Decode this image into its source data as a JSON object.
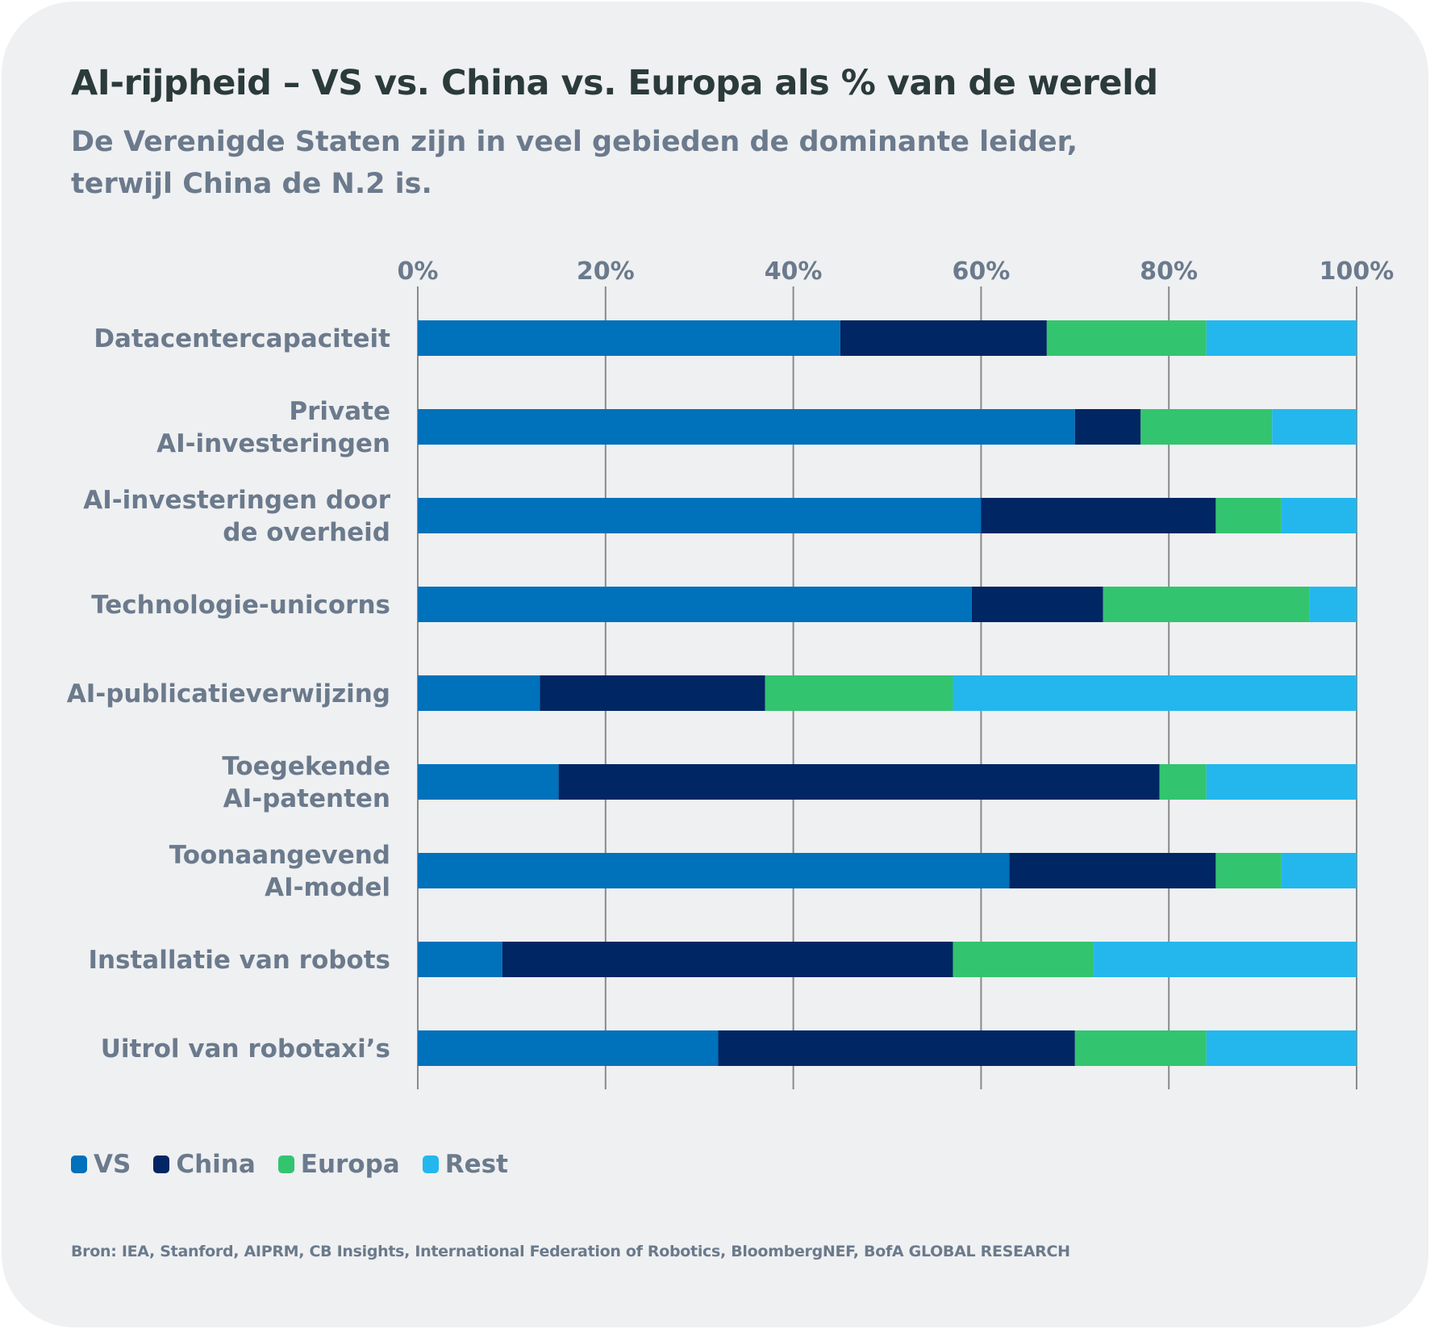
{
  "chart_data": {
    "type": "bar",
    "orientation": "horizontal",
    "stacked": true,
    "title": "AI-rijpheid – VS vs. China vs. Europa als % van de wereld",
    "subtitle": "De Verenigde Staten zijn in veel gebieden de dominante leider, terwijl China de N.2 is.",
    "xlabel": "",
    "ylabel": "",
    "xlim": [
      0,
      100
    ],
    "x_ticks": [
      "0%",
      "20%",
      "40%",
      "60%",
      "80%",
      "100%"
    ],
    "x_tick_values": [
      0,
      20,
      40,
      60,
      80,
      100
    ],
    "grid": true,
    "legend_position": "bottom-left",
    "categories": [
      "Datacentercapaciteit",
      "Private AI-investeringen",
      "AI-investeringen door de overheid",
      "Technologie-unicorns",
      "AI-publicatieverwijzing",
      "Toegekende AI-patenten",
      "Toonaangevend AI-model",
      "Installatie van robots",
      "Uitrol van robotaxi’s"
    ],
    "category_lines": [
      [
        "Datacentercapaciteit"
      ],
      [
        "Private",
        "AI-investeringen"
      ],
      [
        "AI-investeringen door",
        "de overheid"
      ],
      [
        "Technologie-unicorns"
      ],
      [
        "AI-publicatieverwijzing"
      ],
      [
        "Toegekende",
        "AI-patenten"
      ],
      [
        "Toonaangevend",
        "AI-model"
      ],
      [
        "Installatie van robots"
      ],
      [
        "Uitrol van robotaxi’s"
      ]
    ],
    "series": [
      {
        "name": "VS",
        "color": "#0071bb",
        "values": [
          45,
          70,
          60,
          59,
          13,
          15,
          63,
          9,
          32
        ]
      },
      {
        "name": "China",
        "color": "#002663",
        "values": [
          22,
          7,
          25,
          14,
          24,
          64,
          22,
          48,
          38
        ]
      },
      {
        "name": "Europa",
        "color": "#33c46f",
        "values": [
          17,
          14,
          7,
          22,
          20,
          5,
          7,
          15,
          14
        ]
      },
      {
        "name": "Rest",
        "color": "#23b7ee",
        "values": [
          16,
          9,
          8,
          5,
          43,
          16,
          8,
          28,
          16
        ]
      }
    ]
  },
  "source": "Bron: IEA, Stanford, AIPRM, CB Insights, International Federation of Robotics, BloombergNEF, BofA GLOBAL RESEARCH"
}
